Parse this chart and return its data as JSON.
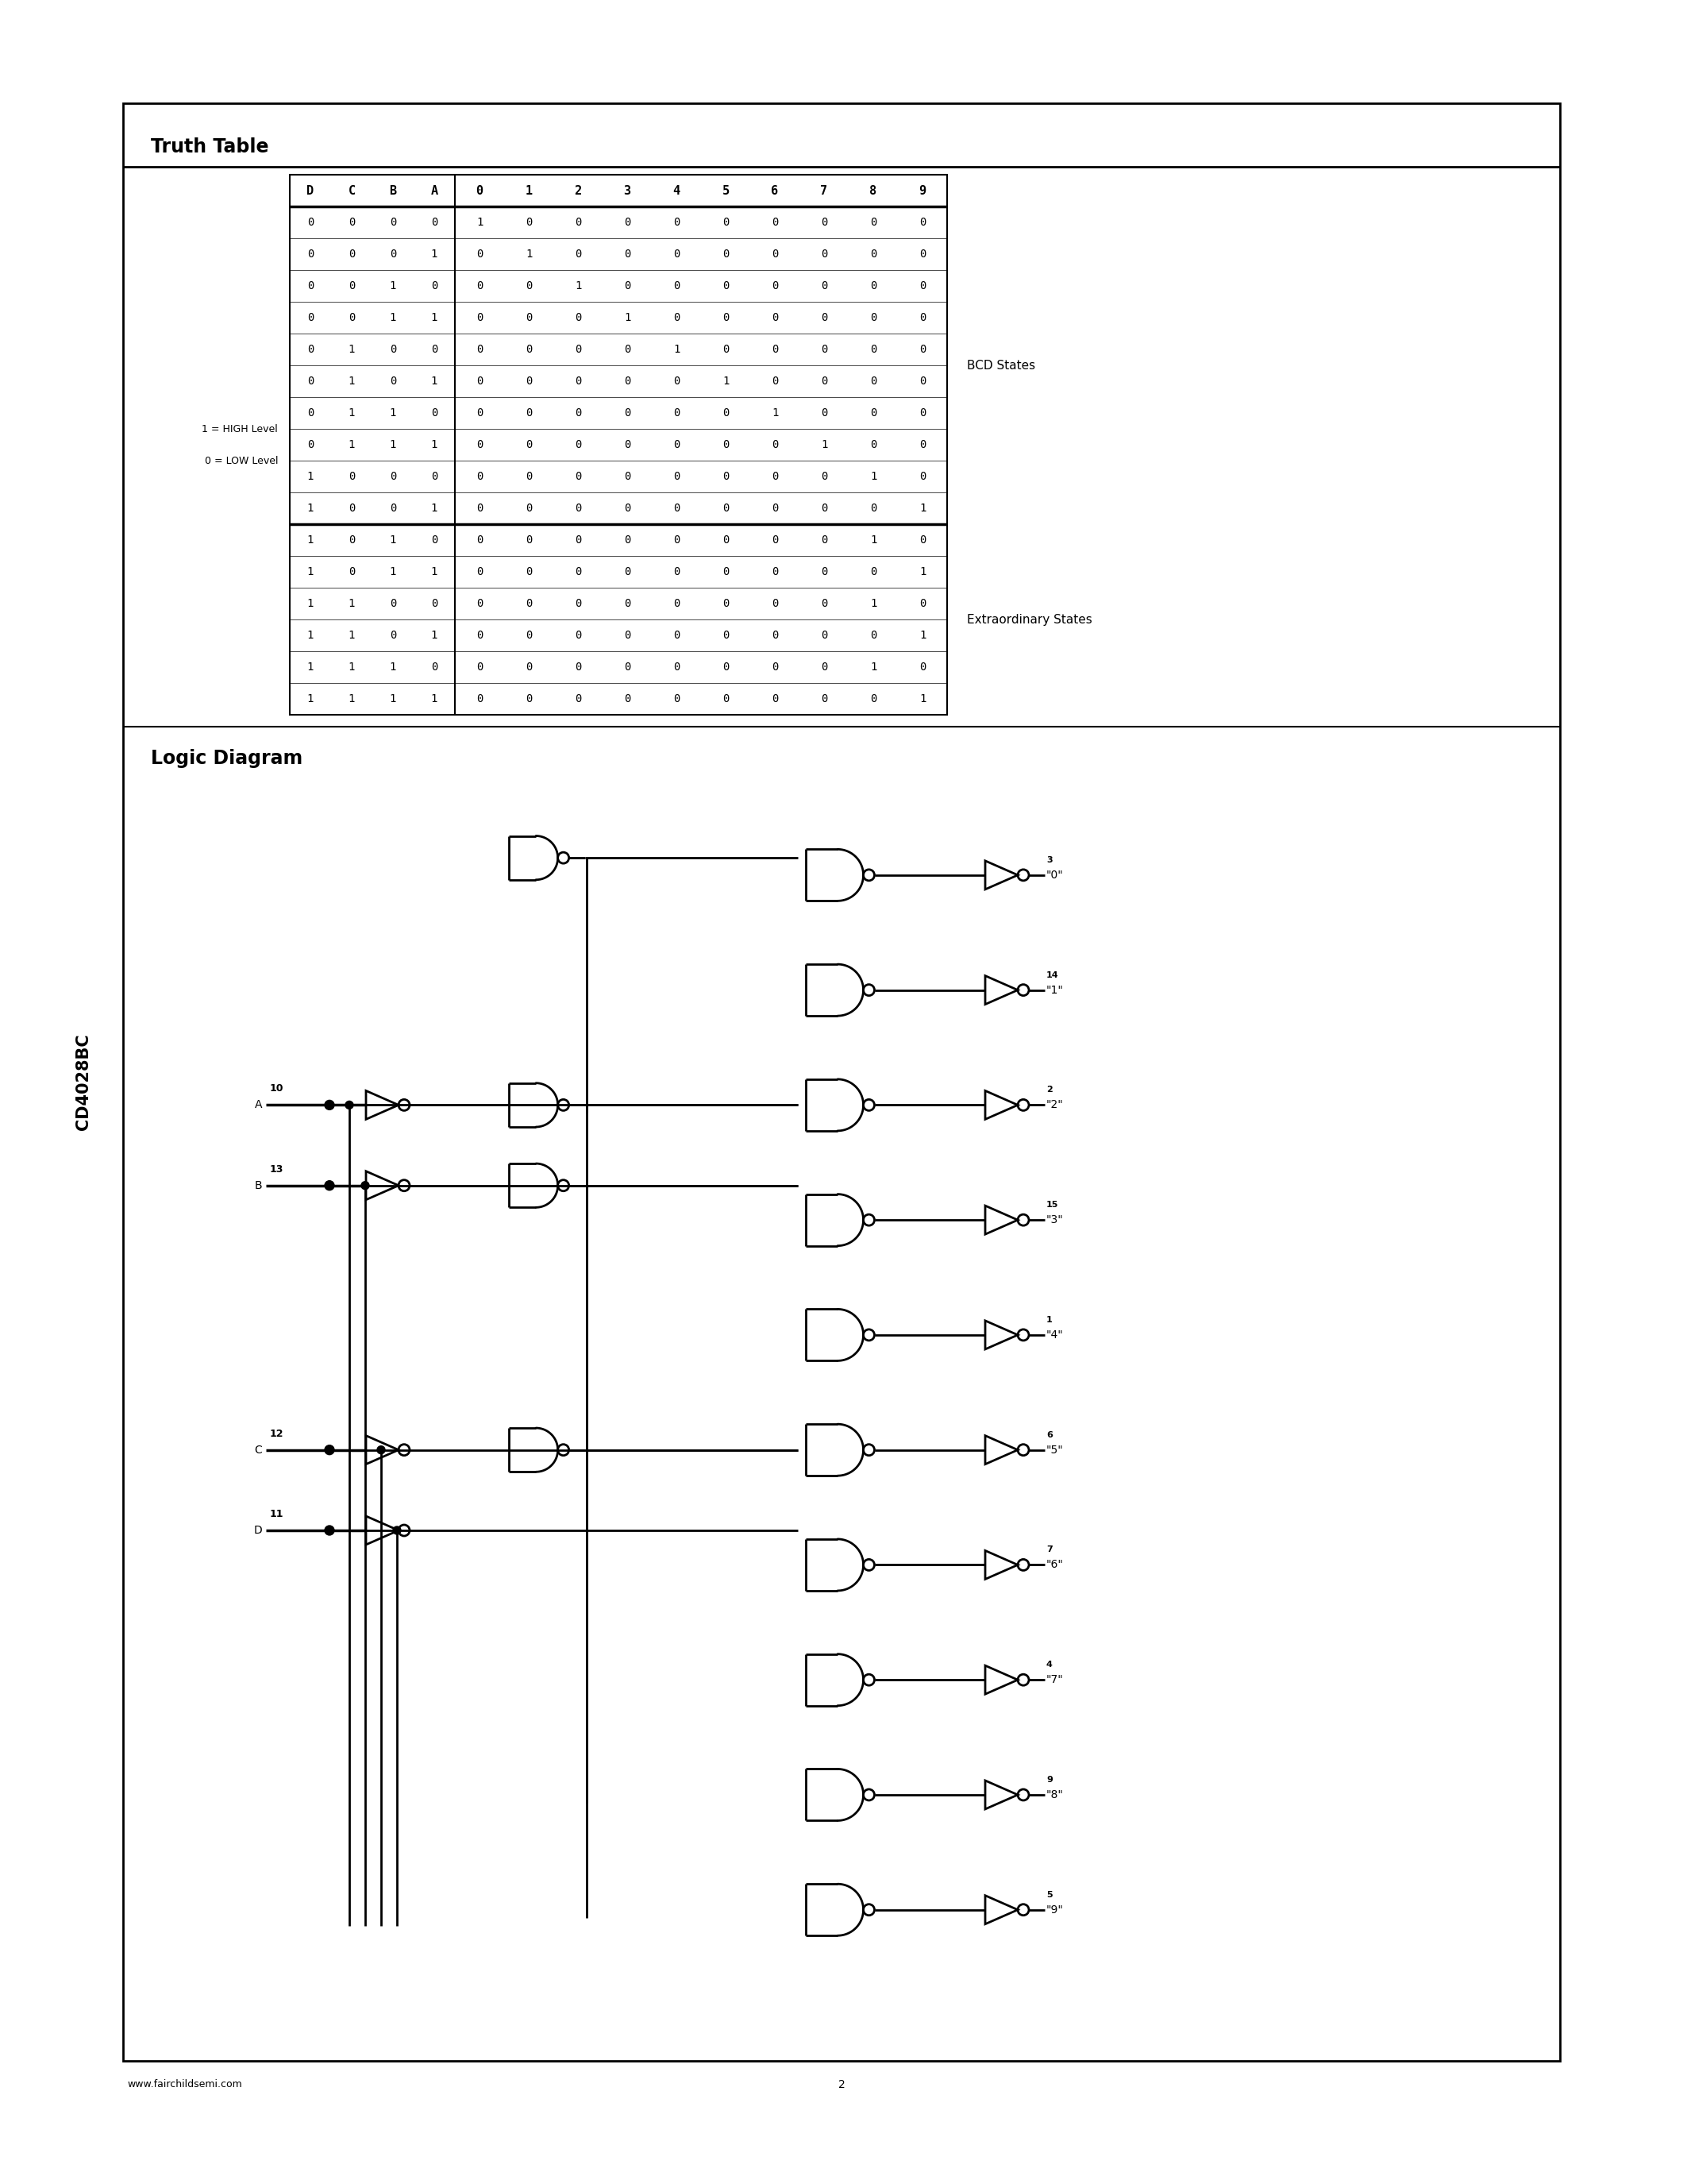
{
  "page_title": "CD4028BC",
  "footer_url": "www.fairchildsemi.com",
  "footer_page": "2",
  "truth_table_title": "Truth Table",
  "logic_diagram_title": "Logic Diagram",
  "table_headers": [
    "D",
    "C",
    "B",
    "A",
    "0",
    "1",
    "2",
    "3",
    "4",
    "5",
    "6",
    "7",
    "8",
    "9"
  ],
  "table_data": [
    [
      0,
      0,
      0,
      0,
      1,
      0,
      0,
      0,
      0,
      0,
      0,
      0,
      0,
      0
    ],
    [
      0,
      0,
      0,
      1,
      0,
      1,
      0,
      0,
      0,
      0,
      0,
      0,
      0,
      0
    ],
    [
      0,
      0,
      1,
      0,
      0,
      0,
      1,
      0,
      0,
      0,
      0,
      0,
      0,
      0
    ],
    [
      0,
      0,
      1,
      1,
      0,
      0,
      0,
      1,
      0,
      0,
      0,
      0,
      0,
      0
    ],
    [
      0,
      1,
      0,
      0,
      0,
      0,
      0,
      0,
      1,
      0,
      0,
      0,
      0,
      0
    ],
    [
      0,
      1,
      0,
      1,
      0,
      0,
      0,
      0,
      0,
      1,
      0,
      0,
      0,
      0
    ],
    [
      0,
      1,
      1,
      0,
      0,
      0,
      0,
      0,
      0,
      0,
      1,
      0,
      0,
      0
    ],
    [
      0,
      1,
      1,
      1,
      0,
      0,
      0,
      0,
      0,
      0,
      0,
      1,
      0,
      0
    ],
    [
      1,
      0,
      0,
      0,
      0,
      0,
      0,
      0,
      0,
      0,
      0,
      0,
      1,
      0
    ],
    [
      1,
      0,
      0,
      1,
      0,
      0,
      0,
      0,
      0,
      0,
      0,
      0,
      0,
      1
    ],
    [
      1,
      0,
      1,
      0,
      0,
      0,
      0,
      0,
      0,
      0,
      0,
      0,
      1,
      0
    ],
    [
      1,
      0,
      1,
      1,
      0,
      0,
      0,
      0,
      0,
      0,
      0,
      0,
      0,
      1
    ],
    [
      1,
      1,
      0,
      0,
      0,
      0,
      0,
      0,
      0,
      0,
      0,
      0,
      1,
      0
    ],
    [
      1,
      1,
      0,
      1,
      0,
      0,
      0,
      0,
      0,
      0,
      0,
      0,
      0,
      1
    ],
    [
      1,
      1,
      1,
      0,
      0,
      0,
      0,
      0,
      0,
      0,
      0,
      0,
      1,
      0
    ],
    [
      1,
      1,
      1,
      1,
      0,
      0,
      0,
      0,
      0,
      0,
      0,
      0,
      0,
      1
    ]
  ],
  "bcd_states_label": "BCD States",
  "extraordinary_states_label": "Extraordinary States",
  "legend_high": "1 = HIGH Level",
  "legend_low": "0 = LOW Level",
  "pin_numbers_output": [
    3,
    14,
    2,
    15,
    1,
    6,
    7,
    4,
    9,
    5
  ],
  "output_labels": [
    "\"0\"",
    "\"1\"",
    "\"2\"",
    "\"3\"",
    "\"4\"",
    "\"5\"",
    "\"6\"",
    "\"7\"",
    "\"8\"",
    "\"9\""
  ],
  "bg_color": "#ffffff",
  "border_color": "#000000"
}
